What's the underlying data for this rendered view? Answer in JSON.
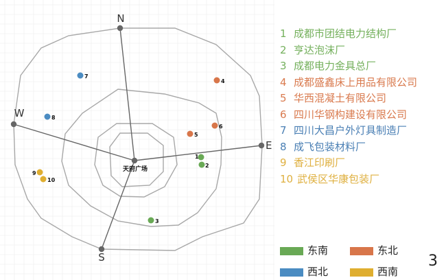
{
  "colors": {
    "green": "#69a955",
    "orange": "#d8764a",
    "blue": "#4b8cc2",
    "yellow": "#dfae30",
    "axis": "#666666",
    "ring": "#a8a8a8"
  },
  "map": {
    "center_label": "天府广场",
    "directions": {
      "n": "N",
      "e": "E",
      "s": "S",
      "w": "W"
    },
    "points": [
      {
        "id": "1",
        "group": "green"
      },
      {
        "id": "2",
        "group": "green"
      },
      {
        "id": "3",
        "group": "green"
      },
      {
        "id": "4",
        "group": "orange"
      },
      {
        "id": "5",
        "group": "orange"
      },
      {
        "id": "6",
        "group": "orange"
      },
      {
        "id": "7",
        "group": "blue"
      },
      {
        "id": "8",
        "group": "blue"
      },
      {
        "id": "9",
        "group": "yellow"
      },
      {
        "id": "10",
        "group": "yellow"
      }
    ]
  },
  "legend": [
    {
      "num": "1",
      "name": "成都市团结电力结构厂",
      "group": "green"
    },
    {
      "num": "2",
      "name": "亨达泡沫厂",
      "group": "green"
    },
    {
      "num": "3",
      "name": "成都电力金具总厂",
      "group": "green"
    },
    {
      "num": "4",
      "name": "成都盛鑫床上用品有限公司",
      "group": "orange"
    },
    {
      "num": "5",
      "name": "华西混凝土有限公司",
      "group": "orange"
    },
    {
      "num": "6",
      "name": "四川华钢构建设有限公司",
      "group": "orange"
    },
    {
      "num": "7",
      "name": "四川大昌户外灯具制造厂",
      "group": "blue"
    },
    {
      "num": "8",
      "name": "成飞包装材料厂",
      "group": "blue"
    },
    {
      "num": "9",
      "name": "香江印刷厂",
      "group": "yellow"
    },
    {
      "num": "10",
      "name": "武侯区华康包装厂",
      "group": "yellow"
    }
  ],
  "categories": [
    {
      "label": "东南",
      "group": "green"
    },
    {
      "label": "东北",
      "group": "orange"
    },
    {
      "label": "西北",
      "group": "blue"
    },
    {
      "label": "西南",
      "group": "yellow"
    }
  ],
  "page_number": "3"
}
